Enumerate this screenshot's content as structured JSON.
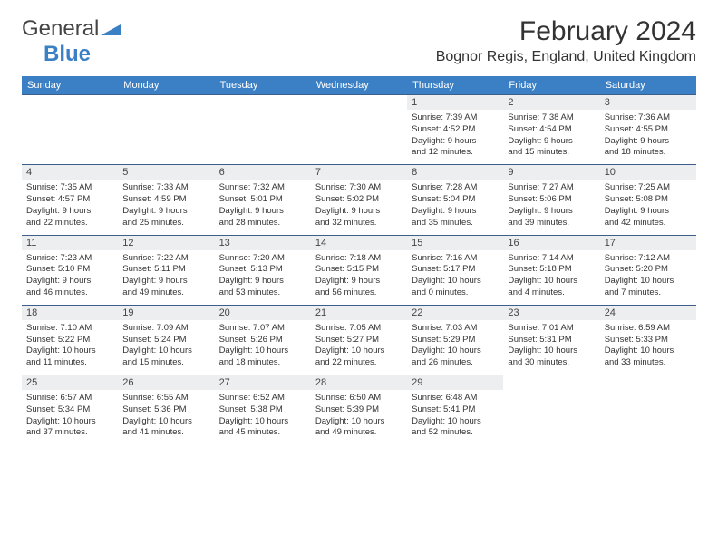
{
  "logo": {
    "text1": "General",
    "text2": "Blue",
    "icon_color": "#3b7fc4"
  },
  "title": "February 2024",
  "location": "Bognor Regis, England, United Kingdom",
  "colors": {
    "header_bg": "#3b7fc4",
    "header_text": "#ffffff",
    "daynum_bg": "#edeeef",
    "row_border": "#3b5f8a",
    "text": "#333333"
  },
  "day_headers": [
    "Sunday",
    "Monday",
    "Tuesday",
    "Wednesday",
    "Thursday",
    "Friday",
    "Saturday"
  ],
  "weeks": [
    [
      null,
      null,
      null,
      null,
      {
        "n": "1",
        "sr": "Sunrise: 7:39 AM",
        "ss": "Sunset: 4:52 PM",
        "d1": "Daylight: 9 hours",
        "d2": "and 12 minutes."
      },
      {
        "n": "2",
        "sr": "Sunrise: 7:38 AM",
        "ss": "Sunset: 4:54 PM",
        "d1": "Daylight: 9 hours",
        "d2": "and 15 minutes."
      },
      {
        "n": "3",
        "sr": "Sunrise: 7:36 AM",
        "ss": "Sunset: 4:55 PM",
        "d1": "Daylight: 9 hours",
        "d2": "and 18 minutes."
      }
    ],
    [
      {
        "n": "4",
        "sr": "Sunrise: 7:35 AM",
        "ss": "Sunset: 4:57 PM",
        "d1": "Daylight: 9 hours",
        "d2": "and 22 minutes."
      },
      {
        "n": "5",
        "sr": "Sunrise: 7:33 AM",
        "ss": "Sunset: 4:59 PM",
        "d1": "Daylight: 9 hours",
        "d2": "and 25 minutes."
      },
      {
        "n": "6",
        "sr": "Sunrise: 7:32 AM",
        "ss": "Sunset: 5:01 PM",
        "d1": "Daylight: 9 hours",
        "d2": "and 28 minutes."
      },
      {
        "n": "7",
        "sr": "Sunrise: 7:30 AM",
        "ss": "Sunset: 5:02 PM",
        "d1": "Daylight: 9 hours",
        "d2": "and 32 minutes."
      },
      {
        "n": "8",
        "sr": "Sunrise: 7:28 AM",
        "ss": "Sunset: 5:04 PM",
        "d1": "Daylight: 9 hours",
        "d2": "and 35 minutes."
      },
      {
        "n": "9",
        "sr": "Sunrise: 7:27 AM",
        "ss": "Sunset: 5:06 PM",
        "d1": "Daylight: 9 hours",
        "d2": "and 39 minutes."
      },
      {
        "n": "10",
        "sr": "Sunrise: 7:25 AM",
        "ss": "Sunset: 5:08 PM",
        "d1": "Daylight: 9 hours",
        "d2": "and 42 minutes."
      }
    ],
    [
      {
        "n": "11",
        "sr": "Sunrise: 7:23 AM",
        "ss": "Sunset: 5:10 PM",
        "d1": "Daylight: 9 hours",
        "d2": "and 46 minutes."
      },
      {
        "n": "12",
        "sr": "Sunrise: 7:22 AM",
        "ss": "Sunset: 5:11 PM",
        "d1": "Daylight: 9 hours",
        "d2": "and 49 minutes."
      },
      {
        "n": "13",
        "sr": "Sunrise: 7:20 AM",
        "ss": "Sunset: 5:13 PM",
        "d1": "Daylight: 9 hours",
        "d2": "and 53 minutes."
      },
      {
        "n": "14",
        "sr": "Sunrise: 7:18 AM",
        "ss": "Sunset: 5:15 PM",
        "d1": "Daylight: 9 hours",
        "d2": "and 56 minutes."
      },
      {
        "n": "15",
        "sr": "Sunrise: 7:16 AM",
        "ss": "Sunset: 5:17 PM",
        "d1": "Daylight: 10 hours",
        "d2": "and 0 minutes."
      },
      {
        "n": "16",
        "sr": "Sunrise: 7:14 AM",
        "ss": "Sunset: 5:18 PM",
        "d1": "Daylight: 10 hours",
        "d2": "and 4 minutes."
      },
      {
        "n": "17",
        "sr": "Sunrise: 7:12 AM",
        "ss": "Sunset: 5:20 PM",
        "d1": "Daylight: 10 hours",
        "d2": "and 7 minutes."
      }
    ],
    [
      {
        "n": "18",
        "sr": "Sunrise: 7:10 AM",
        "ss": "Sunset: 5:22 PM",
        "d1": "Daylight: 10 hours",
        "d2": "and 11 minutes."
      },
      {
        "n": "19",
        "sr": "Sunrise: 7:09 AM",
        "ss": "Sunset: 5:24 PM",
        "d1": "Daylight: 10 hours",
        "d2": "and 15 minutes."
      },
      {
        "n": "20",
        "sr": "Sunrise: 7:07 AM",
        "ss": "Sunset: 5:26 PM",
        "d1": "Daylight: 10 hours",
        "d2": "and 18 minutes."
      },
      {
        "n": "21",
        "sr": "Sunrise: 7:05 AM",
        "ss": "Sunset: 5:27 PM",
        "d1": "Daylight: 10 hours",
        "d2": "and 22 minutes."
      },
      {
        "n": "22",
        "sr": "Sunrise: 7:03 AM",
        "ss": "Sunset: 5:29 PM",
        "d1": "Daylight: 10 hours",
        "d2": "and 26 minutes."
      },
      {
        "n": "23",
        "sr": "Sunrise: 7:01 AM",
        "ss": "Sunset: 5:31 PM",
        "d1": "Daylight: 10 hours",
        "d2": "and 30 minutes."
      },
      {
        "n": "24",
        "sr": "Sunrise: 6:59 AM",
        "ss": "Sunset: 5:33 PM",
        "d1": "Daylight: 10 hours",
        "d2": "and 33 minutes."
      }
    ],
    [
      {
        "n": "25",
        "sr": "Sunrise: 6:57 AM",
        "ss": "Sunset: 5:34 PM",
        "d1": "Daylight: 10 hours",
        "d2": "and 37 minutes."
      },
      {
        "n": "26",
        "sr": "Sunrise: 6:55 AM",
        "ss": "Sunset: 5:36 PM",
        "d1": "Daylight: 10 hours",
        "d2": "and 41 minutes."
      },
      {
        "n": "27",
        "sr": "Sunrise: 6:52 AM",
        "ss": "Sunset: 5:38 PM",
        "d1": "Daylight: 10 hours",
        "d2": "and 45 minutes."
      },
      {
        "n": "28",
        "sr": "Sunrise: 6:50 AM",
        "ss": "Sunset: 5:39 PM",
        "d1": "Daylight: 10 hours",
        "d2": "and 49 minutes."
      },
      {
        "n": "29",
        "sr": "Sunrise: 6:48 AM",
        "ss": "Sunset: 5:41 PM",
        "d1": "Daylight: 10 hours",
        "d2": "and 52 minutes."
      },
      null,
      null
    ]
  ]
}
